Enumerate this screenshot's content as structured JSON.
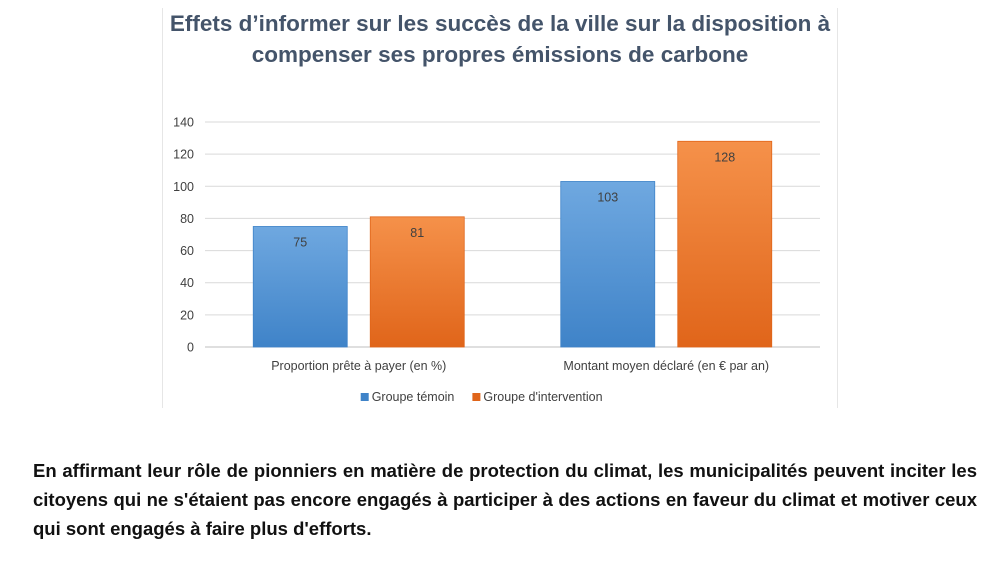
{
  "chart_data": {
    "type": "bar",
    "title": "Effets d’informer sur les succès de la ville sur la disposition à compenser ses propres émissions de carbone",
    "categories": [
      "Proportion prête à payer (en %)",
      "Montant moyen déclaré (en € par an)"
    ],
    "series": [
      {
        "name": "Groupe témoin",
        "values": [
          75,
          103
        ],
        "color_top": "#6fa8e0",
        "color_bottom": "#3f83c8"
      },
      {
        "name": "Groupe d'intervention",
        "values": [
          81,
          128
        ],
        "color_top": "#f5914a",
        "color_bottom": "#e0651a"
      }
    ],
    "ylim": [
      0,
      140
    ],
    "yticks": [
      0,
      20,
      40,
      60,
      80,
      100,
      120,
      140
    ],
    "grid": true,
    "legend_position": "bottom"
  },
  "caption": "En affirmant leur rôle de pionniers en matière de protection du climat, les municipalités peuvent inciter les citoyens qui ne s'étaient pas encore engagés à participer à des actions en faveur du climat et motiver ceux qui sont engagés à faire plus d'efforts."
}
